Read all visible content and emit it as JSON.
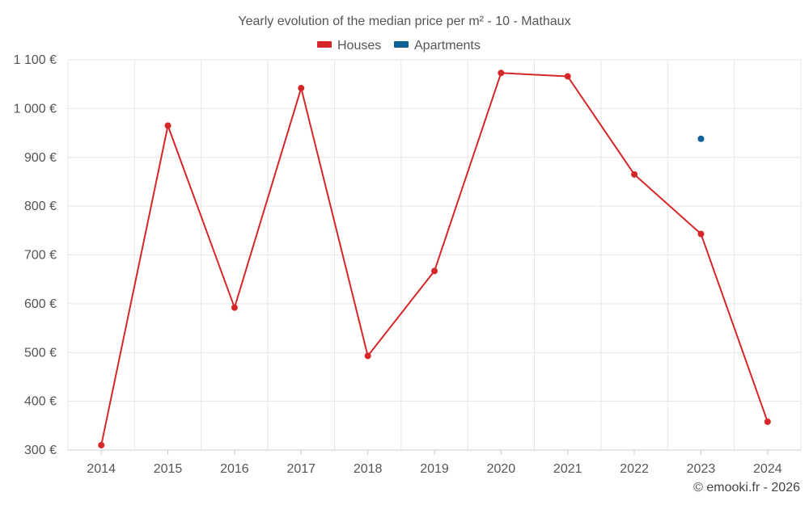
{
  "chart_data": {
    "type": "line",
    "title": "Yearly evolution of the median price per m² - 10 - Mathaux",
    "xlabel": "",
    "ylabel": "",
    "x": [
      "2014",
      "2015",
      "2016",
      "2017",
      "2018",
      "2019",
      "2020",
      "2021",
      "2022",
      "2023",
      "2024"
    ],
    "ylim": [
      300,
      1100
    ],
    "yticks": [
      300,
      400,
      500,
      600,
      700,
      800,
      900,
      1000,
      1100
    ],
    "ytick_labels": [
      "300 €",
      "400 €",
      "500 €",
      "600 €",
      "700 €",
      "800 €",
      "900 €",
      "1 000 €",
      "1 100 €"
    ],
    "legend_position": "top-center",
    "grid": true,
    "series": [
      {
        "name": "Houses",
        "color": "#d62728",
        "values": [
          310,
          965,
          592,
          1042,
          493,
          667,
          1073,
          1066,
          865,
          743,
          358
        ]
      },
      {
        "name": "Apartments",
        "color": "#0e6196",
        "values": [
          null,
          null,
          null,
          null,
          null,
          null,
          null,
          null,
          null,
          938,
          null
        ]
      }
    ]
  },
  "credit": "© emooki.fr - 2026"
}
